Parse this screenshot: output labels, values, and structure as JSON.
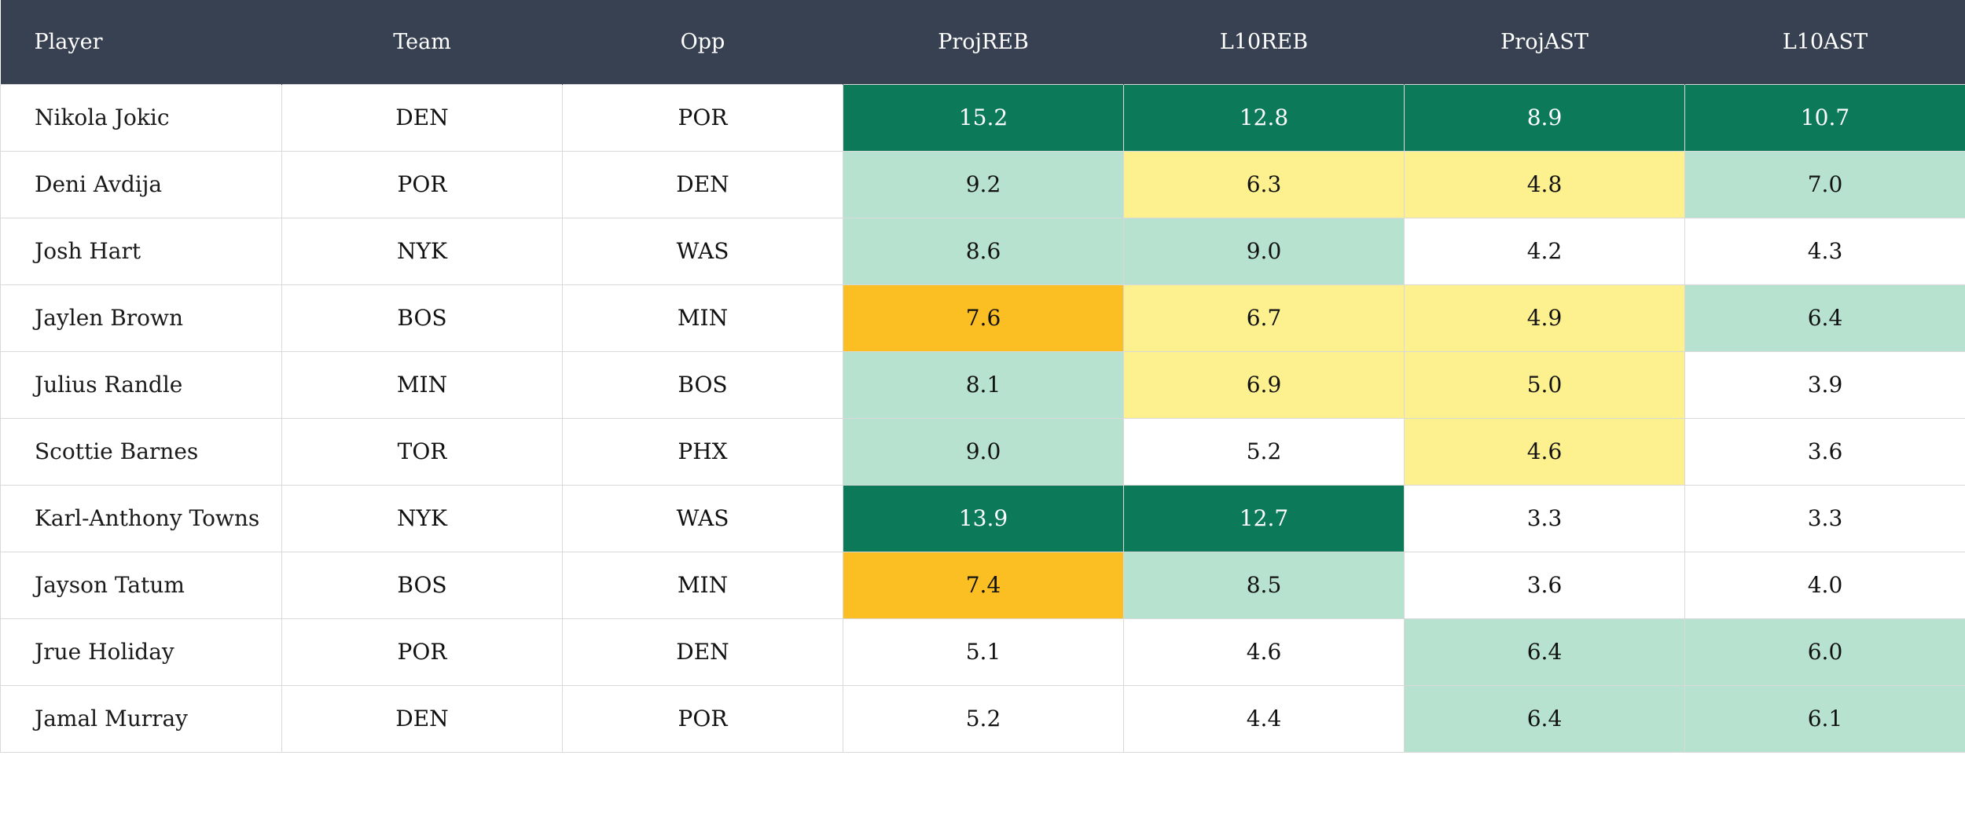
{
  "table": {
    "columns": [
      "Player",
      "Team",
      "Opp",
      "ProjREB",
      "L10REB",
      "ProjAST",
      "L10AST"
    ],
    "rows": [
      {
        "player": "Nikola Jokic",
        "team": "DEN",
        "opp": "POR",
        "stats": [
          {
            "v": "15.2",
            "tier": "dark"
          },
          {
            "v": "12.8",
            "tier": "dark"
          },
          {
            "v": "8.9",
            "tier": "dark"
          },
          {
            "v": "10.7",
            "tier": "dark"
          }
        ]
      },
      {
        "player": "Deni Avdija",
        "team": "POR",
        "opp": "DEN",
        "stats": [
          {
            "v": "9.2",
            "tier": "light"
          },
          {
            "v": "6.3",
            "tier": "yellow"
          },
          {
            "v": "4.8",
            "tier": "yellow"
          },
          {
            "v": "7.0",
            "tier": "light"
          }
        ]
      },
      {
        "player": "Josh Hart",
        "team": "NYK",
        "opp": "WAS",
        "stats": [
          {
            "v": "8.6",
            "tier": "light"
          },
          {
            "v": "9.0",
            "tier": "light"
          },
          {
            "v": "4.2",
            "tier": "white"
          },
          {
            "v": "4.3",
            "tier": "white"
          }
        ]
      },
      {
        "player": "Jaylen Brown",
        "team": "BOS",
        "opp": "MIN",
        "stats": [
          {
            "v": "7.6",
            "tier": "orange"
          },
          {
            "v": "6.7",
            "tier": "yellow"
          },
          {
            "v": "4.9",
            "tier": "yellow"
          },
          {
            "v": "6.4",
            "tier": "light"
          }
        ]
      },
      {
        "player": "Julius Randle",
        "team": "MIN",
        "opp": "BOS",
        "stats": [
          {
            "v": "8.1",
            "tier": "light"
          },
          {
            "v": "6.9",
            "tier": "yellow"
          },
          {
            "v": "5.0",
            "tier": "yellow"
          },
          {
            "v": "3.9",
            "tier": "white"
          }
        ]
      },
      {
        "player": "Scottie Barnes",
        "team": "TOR",
        "opp": "PHX",
        "stats": [
          {
            "v": "9.0",
            "tier": "light"
          },
          {
            "v": "5.2",
            "tier": "white"
          },
          {
            "v": "4.6",
            "tier": "yellow"
          },
          {
            "v": "3.6",
            "tier": "white"
          }
        ]
      },
      {
        "player": "Karl-Anthony Towns",
        "team": "NYK",
        "opp": "WAS",
        "stats": [
          {
            "v": "13.9",
            "tier": "dark"
          },
          {
            "v": "12.7",
            "tier": "dark"
          },
          {
            "v": "3.3",
            "tier": "white"
          },
          {
            "v": "3.3",
            "tier": "white"
          }
        ]
      },
      {
        "player": "Jayson Tatum",
        "team": "BOS",
        "opp": "MIN",
        "stats": [
          {
            "v": "7.4",
            "tier": "orange"
          },
          {
            "v": "8.5",
            "tier": "light"
          },
          {
            "v": "3.6",
            "tier": "white"
          },
          {
            "v": "4.0",
            "tier": "white"
          }
        ]
      },
      {
        "player": "Jrue Holiday",
        "team": "POR",
        "opp": "DEN",
        "stats": [
          {
            "v": "5.1",
            "tier": "white"
          },
          {
            "v": "4.6",
            "tier": "white"
          },
          {
            "v": "6.4",
            "tier": "light"
          },
          {
            "v": "6.0",
            "tier": "light"
          }
        ]
      },
      {
        "player": "Jamal Murray",
        "team": "DEN",
        "opp": "POR",
        "stats": [
          {
            "v": "5.2",
            "tier": "white"
          },
          {
            "v": "4.4",
            "tier": "white"
          },
          {
            "v": "6.4",
            "tier": "light"
          },
          {
            "v": "6.1",
            "tier": "light"
          }
        ]
      }
    ]
  },
  "colors": {
    "header_bg": "#374151",
    "dark": "#0c7a58",
    "light": "#b7e2cf",
    "yellow": "#fdf08e",
    "orange": "#fbbf24",
    "white": "#ffffff"
  }
}
